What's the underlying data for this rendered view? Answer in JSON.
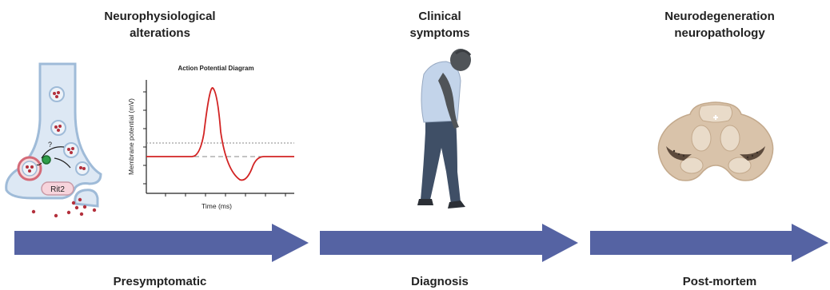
{
  "stages": [
    {
      "heading": "Neurophysiological\nalterations",
      "phase": "Presymptomatic"
    },
    {
      "heading": "Clinical\nsymptoms",
      "phase": "Diagnosis"
    },
    {
      "heading": "Neurodegeneration\nneuropathology",
      "phase": "Post-mortem"
    }
  ],
  "synapse": {
    "protein_label": "Rit2",
    "question_mark": "?"
  },
  "action_potential": {
    "title": "Action Potential Diagram",
    "xlabel": "Time (ms)",
    "ylabel": "Membrane potential (mV)"
  },
  "colors": {
    "arrow": "#5563a3",
    "trace": "#d22323",
    "vesicle": "#b3303c",
    "brain_tissue": "#d9c3aa"
  }
}
